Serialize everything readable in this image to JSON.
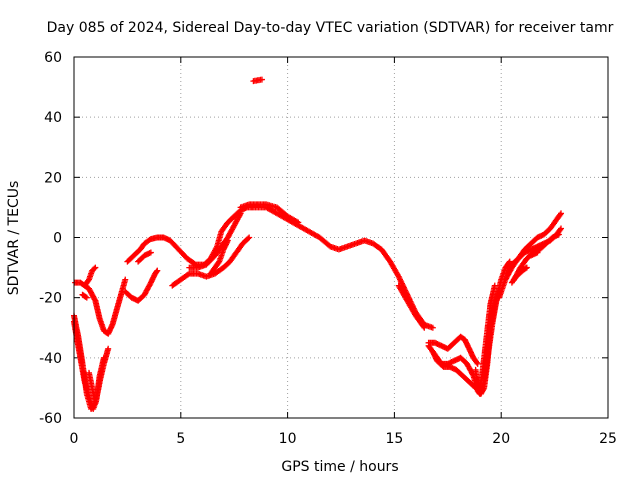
{
  "chart_data": {
    "type": "scatter",
    "title": "Day 085 of 2024, Sidereal Day-to-day VTEC variation (SDTVAR) for receiver tamr",
    "xlabel": "GPS time / hours",
    "ylabel": "SDTVAR / TECUs",
    "xlim": [
      0,
      25
    ],
    "ylim": [
      -60,
      60
    ],
    "xticks": [
      "0",
      "5",
      "10",
      "15",
      "20",
      "25"
    ],
    "yticks": [
      "-60",
      "-40",
      "-20",
      "0",
      "20",
      "40",
      "60"
    ],
    "grid": true,
    "marker": "+",
    "color": "#ff0000",
    "series": [
      {
        "name": "tracks",
        "tracks": [
          [
            [
              0.0,
              -26
            ],
            [
              0.2,
              -33
            ],
            [
              0.4,
              -42
            ],
            [
              0.6,
              -52
            ],
            [
              0.8,
              -57
            ],
            [
              1.0,
              -55
            ],
            [
              1.2,
              -48
            ],
            [
              1.4,
              -42
            ],
            [
              1.6,
              -37
            ]
          ],
          [
            [
              0.0,
              -28
            ],
            [
              0.25,
              -38
            ],
            [
              0.5,
              -48
            ],
            [
              0.75,
              -54
            ],
            [
              0.9,
              -57
            ],
            [
              1.05,
              -54
            ],
            [
              1.2,
              -46
            ],
            [
              1.4,
              -40
            ]
          ],
          [
            [
              0.7,
              -45
            ],
            [
              0.85,
              -50
            ],
            [
              1.0,
              -55
            ],
            [
              1.15,
              -50
            ],
            [
              1.3,
              -44
            ]
          ],
          [
            [
              0.05,
              -15
            ],
            [
              0.3,
              -15
            ],
            [
              0.5,
              -16
            ],
            [
              0.7,
              -14
            ],
            [
              0.85,
              -11
            ],
            [
              1.0,
              -10
            ]
          ],
          [
            [
              0.4,
              -19
            ],
            [
              0.6,
              -20
            ]
          ],
          [
            [
              0.5,
              -16
            ],
            [
              0.7,
              -17
            ],
            [
              1.0,
              -21
            ],
            [
              1.2,
              -27
            ],
            [
              1.4,
              -31
            ],
            [
              1.6,
              -32
            ],
            [
              1.8,
              -29
            ],
            [
              2.0,
              -24
            ],
            [
              2.2,
              -19
            ],
            [
              2.4,
              -14
            ]
          ],
          [
            [
              2.4,
              -18
            ],
            [
              2.7,
              -20
            ],
            [
              3.0,
              -21
            ],
            [
              3.3,
              -19
            ],
            [
              3.6,
              -15
            ],
            [
              3.8,
              -12
            ],
            [
              3.9,
              -11
            ]
          ],
          [
            [
              2.5,
              -8
            ],
            [
              2.8,
              -6
            ],
            [
              3.1,
              -4
            ],
            [
              3.3,
              -2
            ],
            [
              3.6,
              -0.5
            ],
            [
              3.9,
              0
            ],
            [
              4.2,
              0
            ],
            [
              4.5,
              -1
            ],
            [
              4.9,
              -4
            ],
            [
              5.3,
              -7
            ],
            [
              5.7,
              -9
            ],
            [
              6.1,
              -9
            ],
            [
              6.4,
              -7
            ],
            [
              6.7,
              -3
            ],
            [
              6.9,
              2
            ],
            [
              7.2,
              5
            ],
            [
              7.5,
              7
            ],
            [
              7.8,
              9
            ],
            [
              8.1,
              10
            ],
            [
              8.5,
              10
            ],
            [
              9.0,
              10
            ],
            [
              9.5,
              8
            ],
            [
              10.0,
              6
            ],
            [
              10.5,
              4
            ],
            [
              11.0,
              2
            ],
            [
              11.5,
              0
            ],
            [
              12.0,
              -3
            ],
            [
              12.4,
              -4
            ],
            [
              12.8,
              -3
            ],
            [
              13.2,
              -2
            ],
            [
              13.6,
              -1
            ],
            [
              14.0,
              -2
            ],
            [
              14.4,
              -4
            ],
            [
              14.8,
              -8
            ],
            [
              15.2,
              -13
            ],
            [
              15.6,
              -19
            ],
            [
              16.0,
              -25
            ],
            [
              16.4,
              -29
            ],
            [
              16.8,
              -30
            ]
          ],
          [
            [
              3.0,
              -8
            ],
            [
              3.3,
              -6
            ],
            [
              3.6,
              -5
            ]
          ],
          [
            [
              4.6,
              -16
            ],
            [
              5.0,
              -14
            ],
            [
              5.4,
              -12
            ],
            [
              5.8,
              -12
            ],
            [
              6.2,
              -13
            ],
            [
              6.6,
              -12
            ],
            [
              7.0,
              -10
            ],
            [
              7.3,
              -8
            ],
            [
              7.6,
              -5
            ],
            [
              7.9,
              -2
            ],
            [
              8.2,
              0
            ]
          ],
          [
            [
              5.4,
              -10
            ],
            [
              5.8,
              -10
            ],
            [
              6.2,
              -9
            ],
            [
              6.6,
              -6
            ],
            [
              6.9,
              -3
            ],
            [
              7.2,
              0
            ],
            [
              7.5,
              4
            ],
            [
              7.8,
              8
            ]
          ],
          [
            [
              6.4,
              -12
            ],
            [
              6.6,
              -10
            ],
            [
              6.8,
              -8
            ],
            [
              7.0,
              -4
            ],
            [
              7.2,
              -1
            ]
          ],
          [
            [
              7.8,
              10
            ],
            [
              8.2,
              11
            ],
            [
              8.6,
              11
            ],
            [
              9.0,
              11
            ],
            [
              9.5,
              10
            ],
            [
              10.0,
              7
            ],
            [
              10.5,
              5
            ]
          ],
          [
            [
              8.4,
              52
            ],
            [
              8.8,
              52.5
            ]
          ],
          [
            [
              15.2,
              -16
            ],
            [
              15.6,
              -21
            ],
            [
              16.0,
              -26
            ],
            [
              16.4,
              -30
            ]
          ],
          [
            [
              16.6,
              -36
            ],
            [
              16.8,
              -38
            ],
            [
              17.0,
              -41
            ],
            [
              17.3,
              -43
            ],
            [
              17.6,
              -43
            ],
            [
              17.9,
              -44
            ],
            [
              18.2,
              -46
            ],
            [
              18.5,
              -48
            ],
            [
              18.8,
              -50
            ]
          ],
          [
            [
              16.6,
              -35
            ],
            [
              16.9,
              -35
            ],
            [
              17.2,
              -36
            ],
            [
              17.5,
              -37
            ],
            [
              17.8,
              -35
            ],
            [
              18.1,
              -33
            ],
            [
              18.3,
              -34
            ],
            [
              18.5,
              -37
            ],
            [
              18.7,
              -40
            ],
            [
              18.9,
              -42
            ]
          ],
          [
            [
              16.8,
              -38
            ],
            [
              17.0,
              -40
            ],
            [
              17.2,
              -42
            ],
            [
              17.5,
              -42
            ],
            [
              17.8,
              -41
            ],
            [
              18.1,
              -40
            ],
            [
              18.4,
              -42
            ],
            [
              18.7,
              -46
            ],
            [
              18.9,
              -51
            ],
            [
              19.0,
              -52
            ],
            [
              19.2,
              -48
            ],
            [
              19.4,
              -38
            ],
            [
              19.6,
              -28
            ],
            [
              19.8,
              -20
            ],
            [
              20.0,
              -14
            ],
            [
              20.2,
              -10
            ],
            [
              20.4,
              -8
            ]
          ],
          [
            [
              18.8,
              -44
            ],
            [
              18.9,
              -50
            ],
            [
              19.0,
              -50
            ],
            [
              19.1,
              -46
            ],
            [
              19.3,
              -34
            ],
            [
              19.5,
              -22
            ],
            [
              19.7,
              -16
            ]
          ],
          [
            [
              18.9,
              -47
            ],
            [
              19.05,
              -52
            ],
            [
              19.2,
              -50
            ],
            [
              19.35,
              -42
            ],
            [
              19.5,
              -30
            ],
            [
              19.7,
              -22
            ],
            [
              19.9,
              -17
            ]
          ],
          [
            [
              20.3,
              -12
            ],
            [
              20.5,
              -9
            ],
            [
              20.8,
              -7
            ],
            [
              21.1,
              -5
            ],
            [
              21.4,
              -4
            ],
            [
              21.7,
              -3
            ],
            [
              22.0,
              -2
            ],
            [
              22.3,
              -1
            ],
            [
              22.6,
              1
            ],
            [
              22.8,
              3
            ]
          ],
          [
            [
              19.9,
              -20
            ],
            [
              20.2,
              -14
            ],
            [
              20.5,
              -10
            ],
            [
              20.8,
              -7
            ],
            [
              21.1,
              -4
            ],
            [
              21.4,
              -2
            ],
            [
              21.7,
              0
            ],
            [
              22.0,
              1
            ],
            [
              22.3,
              3
            ],
            [
              22.6,
              6
            ],
            [
              22.8,
              8
            ]
          ],
          [
            [
              20.6,
              -14
            ],
            [
              20.9,
              -10
            ],
            [
              21.2,
              -7
            ],
            [
              21.5,
              -5
            ],
            [
              21.8,
              -4
            ],
            [
              22.1,
              -2
            ],
            [
              22.4,
              0
            ],
            [
              22.7,
              1
            ]
          ],
          [
            [
              20.5,
              -15
            ],
            [
              20.7,
              -13
            ],
            [
              21.0,
              -11
            ],
            [
              21.2,
              -10
            ]
          ],
          [
            [
              21.4,
              -6
            ],
            [
              21.7,
              -5
            ]
          ]
        ]
      }
    ]
  }
}
